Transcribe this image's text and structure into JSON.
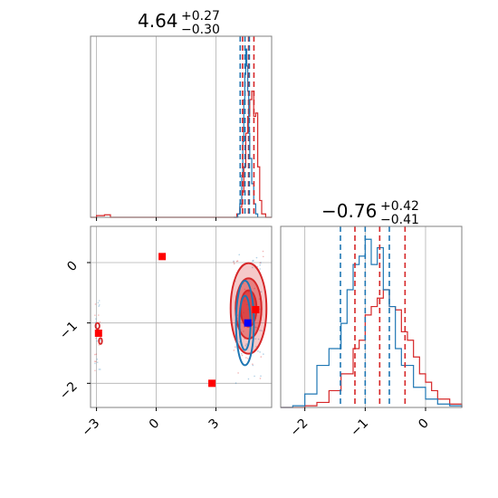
{
  "colors": {
    "series_a": "#d62728",
    "series_b": "#1f77b4",
    "marker_red": "#ff0000",
    "marker_blue": "#0000ff",
    "grid": "#b0b0b0",
    "frame": "#808080"
  },
  "chart_data": [
    {
      "type": "histogram",
      "panel": "top-left",
      "title": {
        "main": "4.64",
        "plus": "+0.27",
        "minus": "−0.30"
      },
      "xlim": [
        -3.3,
        5.8
      ],
      "grid": true,
      "series": [
        {
          "color_key": "series_a",
          "x": [
            -3.3,
            -3.0,
            -2.6,
            -2.3,
            3.9,
            4.05,
            4.2,
            4.3,
            4.4,
            4.5,
            4.6,
            4.7,
            4.8,
            4.9,
            5.0,
            5.1,
            5.2,
            5.3,
            5.5,
            5.8
          ],
          "y": [
            0.0,
            0.01,
            0.015,
            0.0,
            0.0,
            0.02,
            0.06,
            0.15,
            0.3,
            0.5,
            0.6,
            0.7,
            0.75,
            0.6,
            0.62,
            0.3,
            0.1,
            0.02,
            0.0,
            0.0
          ],
          "quantiles": [
            4.34,
            4.64,
            4.91
          ]
        },
        {
          "color_key": "series_b",
          "x": [
            3.9,
            4.1,
            4.2,
            4.3,
            4.35,
            4.4,
            4.45,
            4.5,
            4.55,
            4.6,
            4.65,
            4.7,
            4.8,
            4.9,
            5.0,
            5.1
          ],
          "y": [
            0.0,
            0.02,
            0.08,
            0.25,
            0.45,
            0.7,
            0.85,
            1.0,
            0.9,
            0.75,
            0.5,
            0.35,
            0.2,
            0.08,
            0.02,
            0.0
          ],
          "quantiles": [
            4.22,
            4.46,
            4.68
          ]
        }
      ]
    },
    {
      "type": "histogram",
      "panel": "bottom-right",
      "title": {
        "main": "−0.76",
        "plus": "+0.42",
        "minus": "−0.41"
      },
      "xlim": [
        -2.4,
        0.6
      ],
      "xticks": [
        "−2",
        "−1",
        "0"
      ],
      "grid": true,
      "series": [
        {
          "color_key": "series_a",
          "x": [
            -2.4,
            -2.2,
            -2.0,
            -1.8,
            -1.6,
            -1.4,
            -1.2,
            -1.1,
            -1.0,
            -0.9,
            -0.8,
            -0.7,
            -0.6,
            -0.5,
            -0.4,
            -0.3,
            -0.2,
            -0.1,
            0.0,
            0.1,
            0.2,
            0.4,
            0.6
          ],
          "y": [
            0.0,
            0.0,
            0.01,
            0.03,
            0.1,
            0.2,
            0.35,
            0.4,
            0.55,
            0.6,
            0.65,
            0.7,
            0.6,
            0.58,
            0.45,
            0.4,
            0.3,
            0.2,
            0.15,
            0.1,
            0.05,
            0.02,
            0.0
          ],
          "quantiles": [
            -1.17,
            -0.76,
            -0.34
          ]
        },
        {
          "color_key": "series_b",
          "x": [
            -2.4,
            -2.2,
            -2.0,
            -1.8,
            -1.6,
            -1.4,
            -1.3,
            -1.2,
            -1.1,
            -1.0,
            -0.9,
            -0.8,
            -0.7,
            -0.6,
            -0.5,
            -0.4,
            -0.2,
            0.0,
            0.2,
            0.4,
            0.6
          ],
          "y": [
            0.0,
            0.01,
            0.08,
            0.25,
            0.35,
            0.5,
            0.7,
            0.85,
            0.9,
            1.0,
            0.85,
            0.95,
            0.7,
            0.6,
            0.35,
            0.25,
            0.12,
            0.05,
            0.02,
            0.01,
            0.0
          ],
          "quantiles": [
            -1.41,
            -1.0,
            -0.6
          ]
        }
      ]
    },
    {
      "type": "scatter",
      "panel": "bottom-left",
      "xlim": [
        -3.3,
        5.8
      ],
      "ylim": [
        -2.4,
        0.6
      ],
      "xticks": [
        "−3",
        "0",
        "3"
      ],
      "yticks": [
        "0",
        "−1",
        "−2"
      ],
      "grid": true,
      "points": [
        {
          "x": 0.3,
          "y": 0.1,
          "color_key": "marker_red"
        },
        {
          "x": 2.8,
          "y": -2.0,
          "color_key": "marker_red"
        },
        {
          "x": -2.9,
          "y": -1.17,
          "color_key": "marker_red"
        },
        {
          "x": 5.0,
          "y": -0.78,
          "color_key": "marker_red"
        },
        {
          "x": 4.6,
          "y": -1.0,
          "color_key": "marker_blue"
        }
      ],
      "contours": [
        {
          "color_key": "series_a",
          "cx": 4.64,
          "cy": -0.76,
          "levels": [
            [
              0.9,
              0.75
            ],
            [
              0.65,
              0.5
            ],
            [
              0.4,
              0.3
            ]
          ]
        },
        {
          "color_key": "series_b",
          "cx": 4.46,
          "cy": -1.0,
          "levels": [
            [
              0.45,
              0.7
            ],
            [
              0.28,
              0.45
            ]
          ]
        }
      ],
      "outlier_contours": [
        {
          "color_key": "series_a",
          "cx": -2.95,
          "cy": -1.05,
          "rx": 0.1,
          "ry": 0.05
        },
        {
          "color_key": "series_a",
          "cx": -2.8,
          "cy": -1.3,
          "rx": 0.08,
          "ry": 0.05
        }
      ]
    }
  ]
}
